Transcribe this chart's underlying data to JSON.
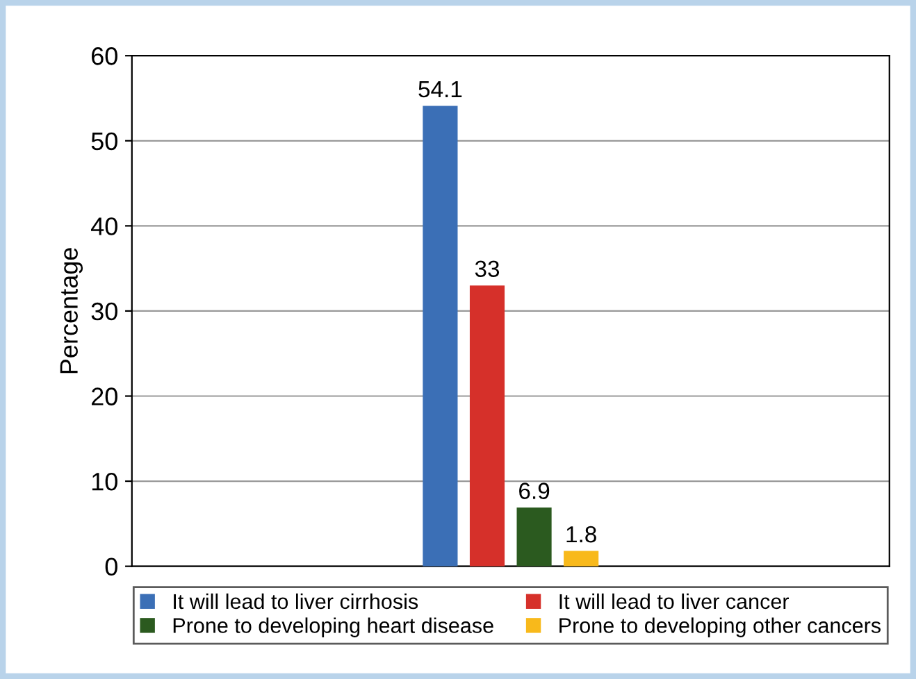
{
  "chart_data": {
    "type": "bar",
    "ylabel": "Percentage",
    "categories": [
      null
    ],
    "series": [
      {
        "name": "It will lead to liver cirrhosis",
        "color": "#3b6fb6",
        "values": [
          54.1
        ]
      },
      {
        "name": "It will lead to liver cancer",
        "color": "#d6302a",
        "values": [
          33
        ]
      },
      {
        "name": "Prone to developing heart disease",
        "color": "#2b5a1f",
        "values": [
          6.9
        ]
      },
      {
        "name": "Prone to developing other cancers",
        "color": "#f8b91b",
        "values": [
          1.8
        ]
      }
    ],
    "ylim": [
      0,
      60
    ],
    "yticks": [
      0,
      10,
      20,
      30,
      40,
      50,
      60
    ],
    "grid": "y",
    "legend": "bottom",
    "data_labels": true
  }
}
